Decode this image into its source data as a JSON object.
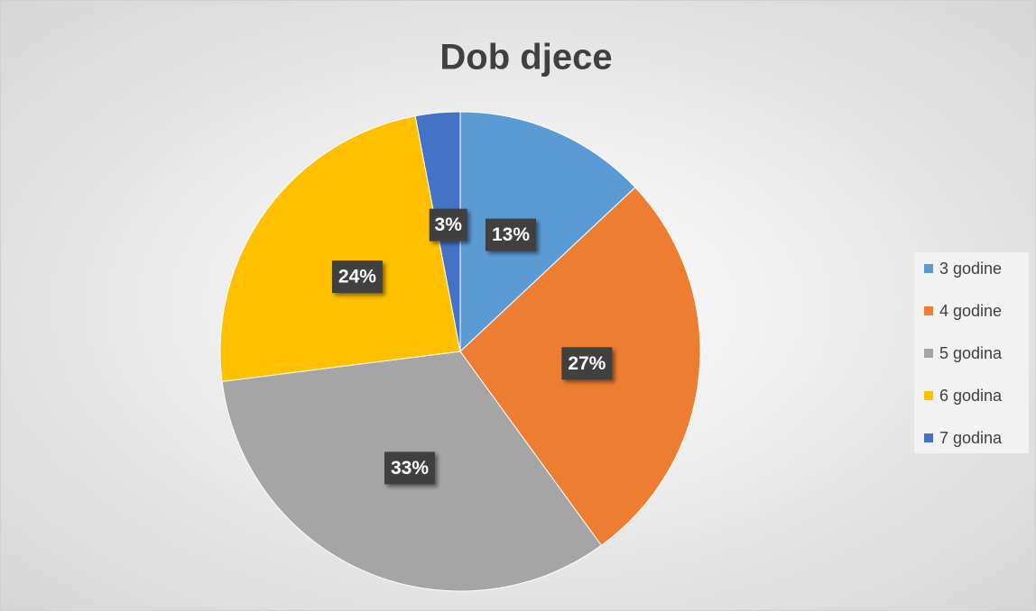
{
  "chart_data": {
    "type": "pie",
    "title": "Dob djece",
    "categories": [
      "3 godine",
      "4 godine",
      "5 godina",
      "6 godina",
      "7 godina"
    ],
    "values": [
      13,
      27,
      33,
      24,
      3
    ],
    "value_labels": [
      "13%",
      "27%",
      "33%",
      "24%",
      "3%"
    ],
    "colors": [
      "#5b9bd5",
      "#ed7d31",
      "#a5a5a5",
      "#ffc000",
      "#4472c4"
    ],
    "legend": "right"
  }
}
